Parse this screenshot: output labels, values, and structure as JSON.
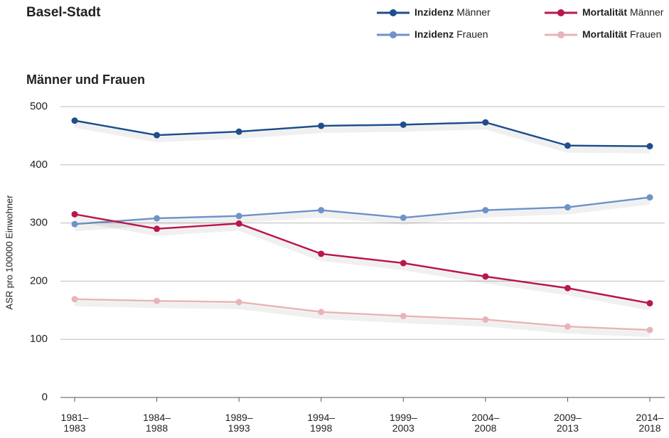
{
  "chart_data": {
    "type": "line",
    "title": "Basel-Stadt",
    "subtitle": "Männer und Frauen",
    "y_label": "ASR pro 100000 Einwohner",
    "categories": [
      "1981–1983",
      "1984–1988",
      "1989–1993",
      "1994–1998",
      "1999–2003",
      "2004–2008",
      "2009–2013",
      "2014–2018"
    ],
    "ylim": [
      0,
      500
    ],
    "yticks": [
      0,
      100,
      200,
      300,
      400,
      500
    ],
    "grid": true,
    "series": [
      {
        "measure": "Inzidenz",
        "sex": "Männer",
        "color": "#1f4e8c",
        "values": [
          476,
          451,
          457,
          467,
          469,
          473,
          433,
          432
        ]
      },
      {
        "measure": "Inzidenz",
        "sex": "Frauen",
        "color": "#6f93c8",
        "values": [
          298,
          308,
          312,
          322,
          309,
          322,
          327,
          344
        ]
      },
      {
        "measure": "Mortalität",
        "sex": "Männer",
        "color": "#b8184a",
        "values": [
          315,
          290,
          299,
          247,
          231,
          208,
          188,
          162
        ]
      },
      {
        "measure": "Mortalität",
        "sex": "Frauen",
        "color": "#e8b4b8",
        "values": [
          169,
          166,
          164,
          147,
          140,
          134,
          122,
          116
        ]
      }
    ]
  }
}
